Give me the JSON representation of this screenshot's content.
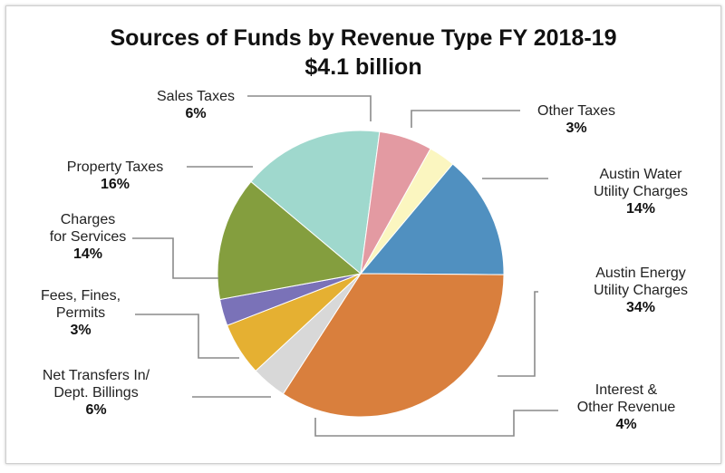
{
  "chart_data": {
    "type": "pie",
    "title": "Sources of Funds by Revenue Type FY 2018-19",
    "subtitle": "$4.1 billion",
    "slices": [
      {
        "label_lines": [
          "Austin Water",
          "Utility Charges"
        ],
        "value_label": "14%",
        "value": 14,
        "color": "#5090c0"
      },
      {
        "label_lines": [
          "Austin Energy",
          "Utility Charges"
        ],
        "value_label": "34%",
        "value": 34,
        "color": "#d97f3d"
      },
      {
        "label_lines": [
          "Interest &",
          "Other Revenue"
        ],
        "value_label": "4%",
        "value": 4,
        "color": "#d8d8d8"
      },
      {
        "label_lines": [
          "Net Transfers In/",
          "Dept. Billings"
        ],
        "value_label": "6%",
        "value": 6,
        "color": "#e5b032"
      },
      {
        "label_lines": [
          "Fees, Fines,",
          "Permits"
        ],
        "value_label": "3%",
        "value": 3,
        "color": "#7a72b8"
      },
      {
        "label_lines": [
          "Charges",
          "for Services"
        ],
        "value_label": "14%",
        "value": 14,
        "color": "#849e3e"
      },
      {
        "label_lines": [
          "Property Taxes"
        ],
        "value_label": "16%",
        "value": 16,
        "color": "#9fd8cd"
      },
      {
        "label_lines": [
          "Sales Taxes"
        ],
        "value_label": "6%",
        "value": 6,
        "color": "#e39aa2"
      },
      {
        "label_lines": [
          "Other Taxes"
        ],
        "value_label": "3%",
        "value": 3,
        "color": "#fbf6c0"
      }
    ]
  }
}
